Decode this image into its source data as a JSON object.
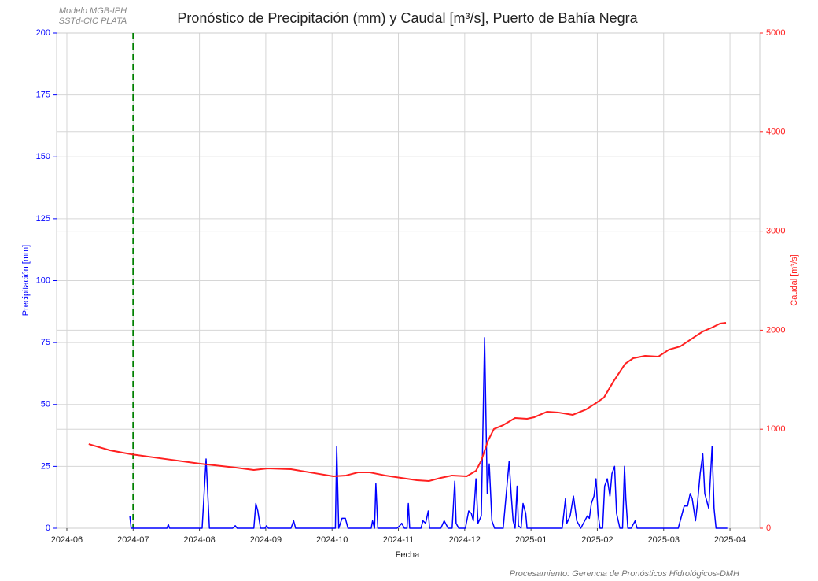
{
  "chart_data": {
    "type": "line",
    "title": "Pronóstico de Precipitación (mm) y Caudal [m³/s], Puerto de Bahía Negra",
    "annotations": [
      "Modelo MGB-IPH",
      "SSTd-CIC PLATA",
      "Procesamiento: Gerencia de Pronósticos Hidrológicos-DMH"
    ],
    "xlabel": "Fecha",
    "ylabel": "Precipitación [mm]",
    "y2label": "Caudal [m³/s]",
    "ylabel_color": "#0000ff",
    "y2label_color": "#ff2020",
    "xlim": [
      -0.154,
      10.45
    ],
    "xticks": [
      {
        "value": 0,
        "label": "2024-06"
      },
      {
        "value": 1,
        "label": "2024-07"
      },
      {
        "value": 2,
        "label": "2024-08"
      },
      {
        "value": 3,
        "label": "2024-09"
      },
      {
        "value": 4,
        "label": "2024-10"
      },
      {
        "value": 5,
        "label": "2024-11"
      },
      {
        "value": 6,
        "label": "2024-12"
      },
      {
        "value": 7,
        "label": "2025-01"
      },
      {
        "value": 8,
        "label": "2025-02"
      },
      {
        "value": 9,
        "label": "2025-03"
      },
      {
        "value": 10,
        "label": "2025-04"
      }
    ],
    "ylim": [
      0,
      200
    ],
    "yticks": [
      0,
      25,
      50,
      75,
      100,
      125,
      150,
      175,
      200
    ],
    "y2lim": [
      0,
      5000
    ],
    "y2ticks": [
      0,
      1000,
      2000,
      3000,
      4000,
      5000
    ],
    "grid": true,
    "vline": {
      "x": 1,
      "color": "#008000"
    },
    "series": [
      {
        "color": "#0000ff",
        "x": [
          0.95,
          0.97,
          1.51,
          1.53,
          1.55,
          2.04,
          2.1,
          2.15,
          2.5,
          2.54,
          2.57,
          2.82,
          2.85,
          2.88,
          2.92,
          2.99,
          3.01,
          3.04,
          3.38,
          3.42,
          3.45,
          4.05,
          4.07,
          4.1,
          4.15,
          4.2,
          4.24,
          4.59,
          4.61,
          4.64,
          4.66,
          4.69,
          4.98,
          5.02,
          5.05,
          5.09,
          5.13,
          5.15,
          5.17,
          5.34,
          5.37,
          5.41,
          5.45,
          5.47,
          5.64,
          5.69,
          5.75,
          5.81,
          5.85,
          5.87,
          5.91,
          6.01,
          6.06,
          6.1,
          6.13,
          6.17,
          6.2,
          6.25,
          6.3,
          6.34,
          6.37,
          6.41,
          6.45,
          6.58,
          6.63,
          6.67,
          6.7,
          6.73,
          6.76,
          6.79,
          6.81,
          6.85,
          6.88,
          6.92,
          6.94,
          7.47,
          7.52,
          7.54,
          7.59,
          7.64,
          7.69,
          7.75,
          7.81,
          7.85,
          7.88,
          7.91,
          7.95,
          7.98,
          8.01,
          8.04,
          8.08,
          8.11,
          8.15,
          8.19,
          8.22,
          8.26,
          8.29,
          8.34,
          8.38,
          8.41,
          8.43,
          8.46,
          8.51,
          8.57,
          8.6,
          8.9,
          8.93,
          9.22,
          9.28,
          9.31,
          9.36,
          9.4,
          9.43,
          9.48,
          9.51,
          9.55,
          9.59,
          9.62,
          9.66,
          9.68,
          9.73,
          9.76,
          9.79,
          9.96
        ],
        "values": [
          5,
          0,
          0,
          1.5,
          0,
          0,
          28,
          0,
          0,
          1,
          0,
          0,
          10,
          7,
          0,
          0,
          1,
          0,
          0,
          3,
          0,
          0,
          33,
          0,
          4,
          4,
          0,
          0,
          3,
          0,
          18,
          0,
          0,
          1,
          2,
          0,
          0,
          10,
          0,
          0,
          3,
          2,
          7,
          0,
          0,
          3,
          0,
          0,
          19,
          2,
          0,
          0,
          7,
          6,
          3,
          20,
          2,
          5,
          77,
          14,
          26,
          3,
          0,
          0,
          15,
          27,
          14,
          3,
          0,
          17,
          1,
          0,
          10,
          6,
          0,
          0,
          12,
          2,
          5,
          13,
          3,
          0,
          3,
          5,
          4,
          10,
          13,
          20,
          6,
          0,
          0,
          17,
          20,
          13,
          22,
          25,
          6,
          0,
          0,
          25,
          12,
          0,
          0,
          3,
          0,
          0,
          0,
          0,
          6,
          9,
          9,
          14,
          12,
          3,
          10,
          22,
          30,
          14,
          10,
          8,
          33,
          8,
          0,
          0
        ]
      },
      {
        "color": "#ff2020",
        "axis": "y2",
        "x": [
          0.33,
          0.65,
          0.97,
          1.48,
          2.01,
          2.55,
          2.82,
          3.03,
          3.38,
          3.74,
          4.02,
          4.21,
          4.39,
          4.57,
          4.8,
          5.04,
          5.28,
          5.46,
          5.64,
          5.81,
          6.03,
          6.17,
          6.25,
          6.35,
          6.44,
          6.58,
          6.76,
          6.94,
          7.05,
          7.24,
          7.41,
          7.63,
          7.83,
          7.98,
          8.1,
          8.24,
          8.42,
          8.54,
          8.72,
          8.92,
          9.08,
          9.25,
          9.43,
          9.59,
          9.73,
          9.85,
          9.94
        ],
        "values": [
          850,
          787,
          747,
          700,
          652,
          612,
          588,
          604,
          596,
          556,
          525,
          533,
          564,
          564,
          533,
          509,
          485,
          477,
          509,
          533,
          525,
          580,
          684,
          882,
          1002,
          1041,
          1113,
          1105,
          1121,
          1176,
          1169,
          1145,
          1200,
          1264,
          1320,
          1479,
          1661,
          1717,
          1741,
          1733,
          1804,
          1836,
          1916,
          1987,
          2027,
          2067,
          2075
        ]
      }
    ]
  }
}
